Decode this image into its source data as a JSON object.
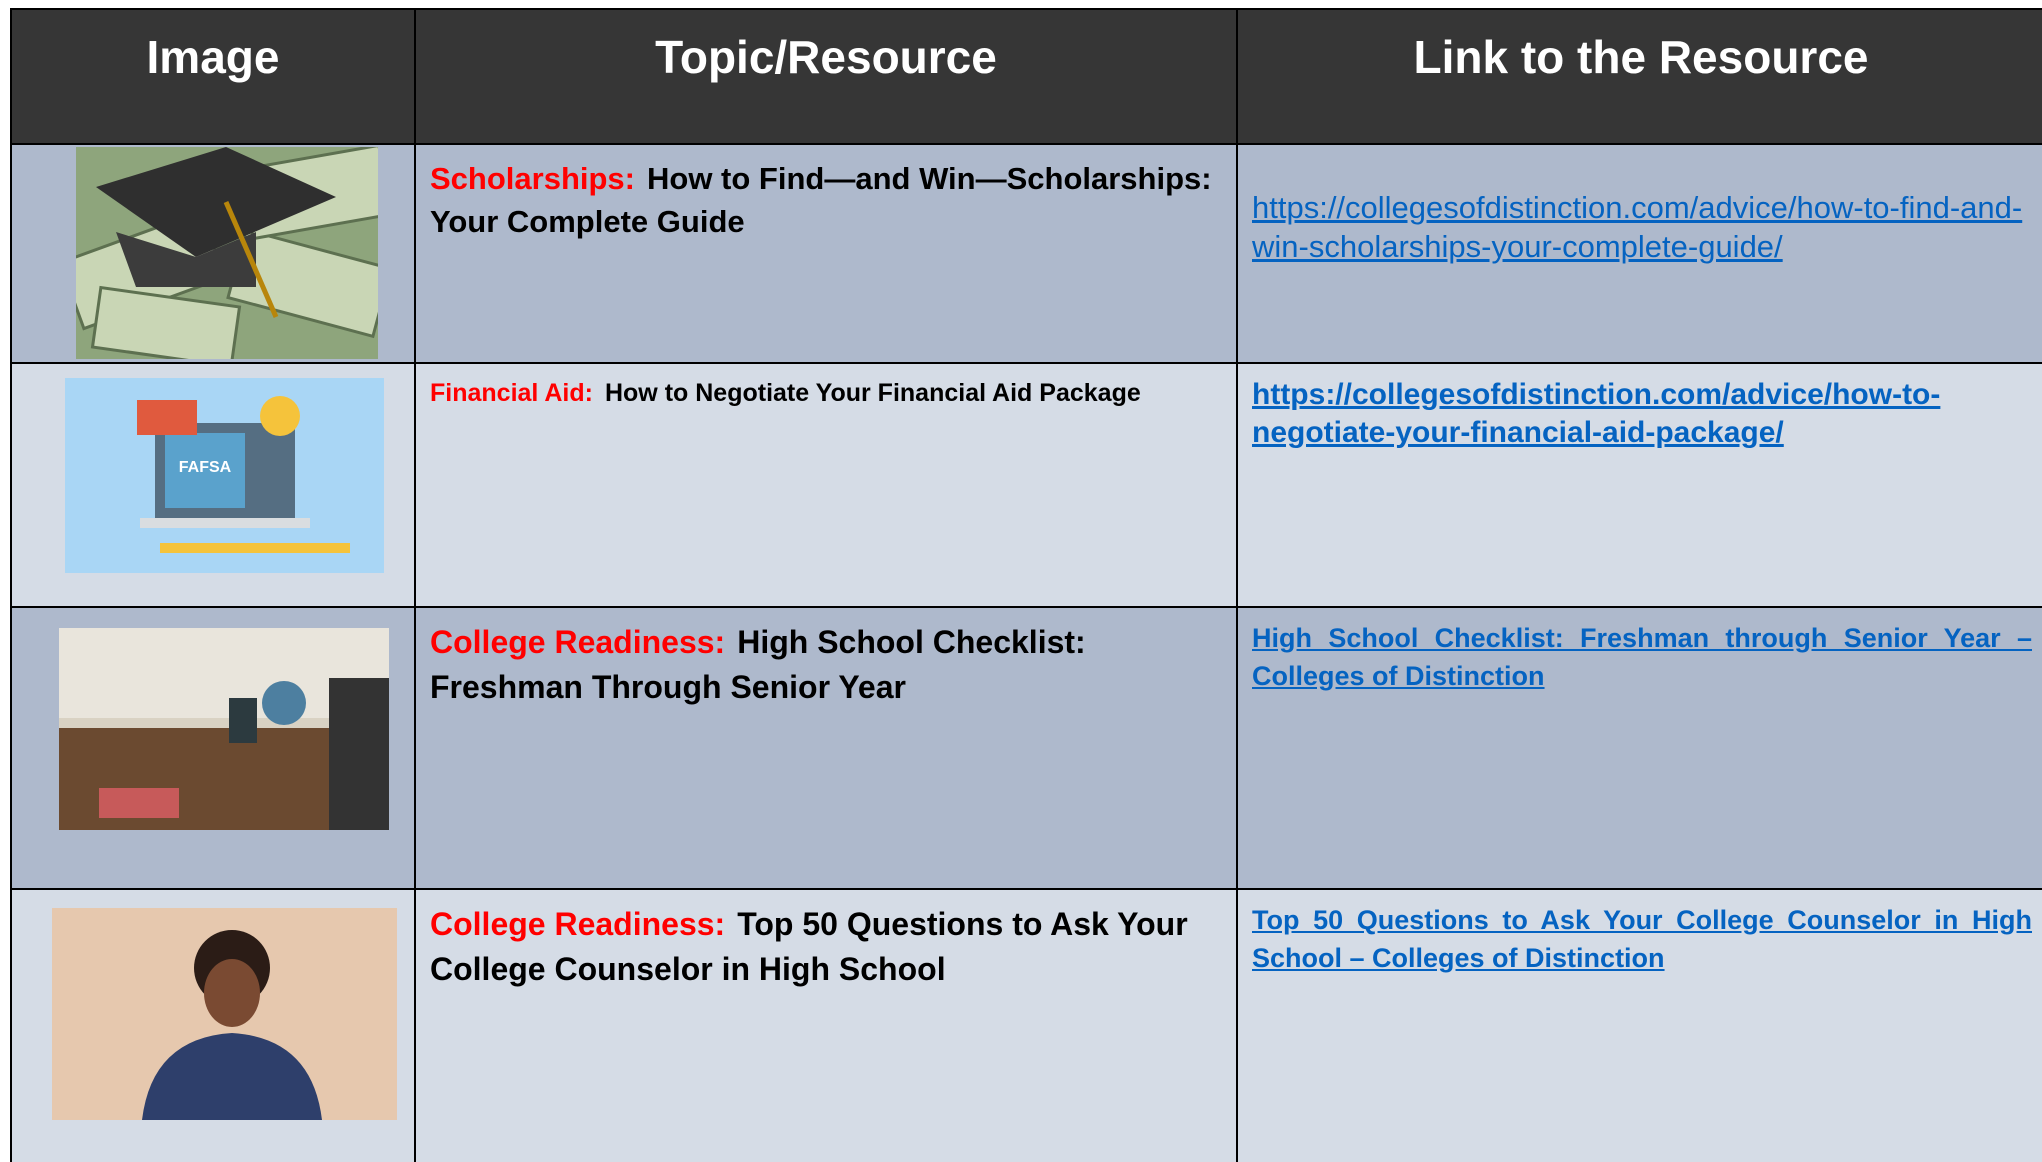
{
  "header": {
    "columns": [
      "Image",
      "Topic/Resource",
      "Link to the Resource"
    ]
  },
  "table": {
    "rows": [
      {
        "category": "Scholarships:",
        "title": "How to Find—and Win—Scholarships: Your Complete Guide",
        "link": "https://collegesofdistinction.com/advice/how-to-find-and-win-scholarships-your-complete-guide/"
      },
      {
        "category": "Financial Aid:",
        "title": "How to Negotiate Your Financial Aid Package",
        "link": "https://collegesofdistinction.com/advice/how-to-negotiate-your-financial-aid-package/"
      },
      {
        "category": "College Readiness:",
        "title": "High School Checklist: Freshman Through Senior Year",
        "link": "High School Checklist: Freshman through Senior Year – Colleges of Distinction"
      },
      {
        "category": "College Readiness:",
        "title": "Top 50 Questions to Ask Your College Counselor in High School",
        "link": "Top 50 Questions to Ask Your College Counselor in High School – Colleges of Distinction"
      }
    ]
  }
}
